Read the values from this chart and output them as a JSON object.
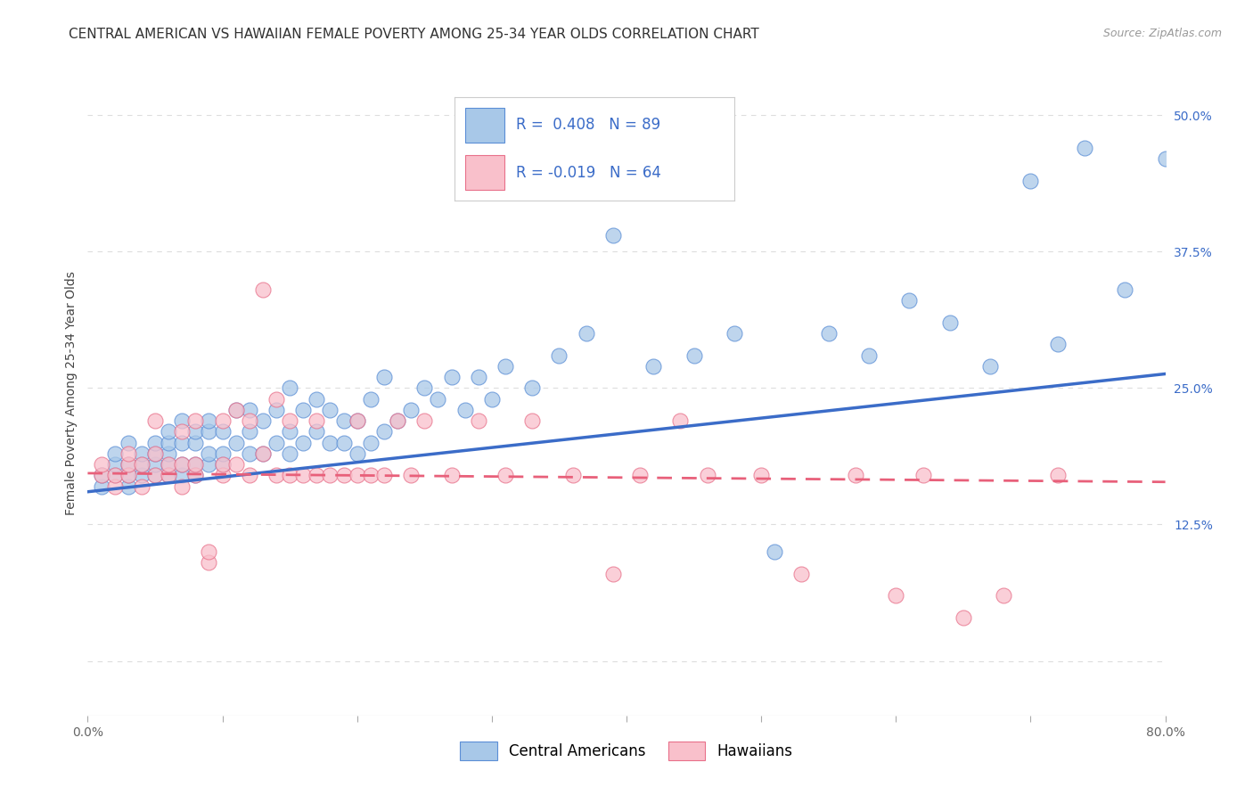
{
  "title": "CENTRAL AMERICAN VS HAWAIIAN FEMALE POVERTY AMONG 25-34 YEAR OLDS CORRELATION CHART",
  "source": "Source: ZipAtlas.com",
  "ylabel": "Female Poverty Among 25-34 Year Olds",
  "xlim": [
    0.0,
    0.8
  ],
  "ylim": [
    -0.05,
    0.54
  ],
  "xticks": [
    0.0,
    0.1,
    0.2,
    0.3,
    0.4,
    0.5,
    0.6,
    0.7,
    0.8
  ],
  "yticks_right": [
    0.0,
    0.125,
    0.25,
    0.375,
    0.5
  ],
  "yticklabels_right": [
    "",
    "12.5%",
    "25.0%",
    "37.5%",
    "50.0%"
  ],
  "blue_color": "#A8C8E8",
  "pink_color": "#F9C0CB",
  "blue_edge_color": "#5B8ED6",
  "pink_edge_color": "#E8708A",
  "blue_line_color": "#3B6CC8",
  "pink_line_color": "#E8607A",
  "r_blue": 0.408,
  "n_blue": 89,
  "r_pink": -0.019,
  "n_pink": 64,
  "blue_intercept": 0.155,
  "blue_slope": 0.135,
  "pink_intercept": 0.172,
  "pink_slope": -0.01,
  "blue_scatter_x": [
    0.01,
    0.01,
    0.02,
    0.02,
    0.02,
    0.03,
    0.03,
    0.03,
    0.03,
    0.04,
    0.04,
    0.04,
    0.05,
    0.05,
    0.05,
    0.05,
    0.06,
    0.06,
    0.06,
    0.06,
    0.06,
    0.07,
    0.07,
    0.07,
    0.07,
    0.08,
    0.08,
    0.08,
    0.08,
    0.09,
    0.09,
    0.09,
    0.09,
    0.1,
    0.1,
    0.1,
    0.11,
    0.11,
    0.12,
    0.12,
    0.12,
    0.13,
    0.13,
    0.14,
    0.14,
    0.15,
    0.15,
    0.15,
    0.16,
    0.16,
    0.17,
    0.17,
    0.18,
    0.18,
    0.19,
    0.19,
    0.2,
    0.2,
    0.21,
    0.21,
    0.22,
    0.22,
    0.23,
    0.24,
    0.25,
    0.26,
    0.27,
    0.28,
    0.29,
    0.3,
    0.31,
    0.33,
    0.35,
    0.37,
    0.39,
    0.42,
    0.45,
    0.48,
    0.51,
    0.55,
    0.58,
    0.61,
    0.64,
    0.67,
    0.7,
    0.72,
    0.74,
    0.77,
    0.8
  ],
  "blue_scatter_y": [
    0.16,
    0.17,
    0.17,
    0.18,
    0.19,
    0.16,
    0.17,
    0.18,
    0.2,
    0.17,
    0.18,
    0.19,
    0.17,
    0.18,
    0.19,
    0.2,
    0.17,
    0.18,
    0.19,
    0.2,
    0.21,
    0.17,
    0.18,
    0.2,
    0.22,
    0.17,
    0.18,
    0.2,
    0.21,
    0.18,
    0.19,
    0.21,
    0.22,
    0.18,
    0.19,
    0.21,
    0.2,
    0.23,
    0.19,
    0.21,
    0.23,
    0.19,
    0.22,
    0.2,
    0.23,
    0.19,
    0.21,
    0.25,
    0.2,
    0.23,
    0.21,
    0.24,
    0.2,
    0.23,
    0.2,
    0.22,
    0.19,
    0.22,
    0.2,
    0.24,
    0.21,
    0.26,
    0.22,
    0.23,
    0.25,
    0.24,
    0.26,
    0.23,
    0.26,
    0.24,
    0.27,
    0.25,
    0.28,
    0.3,
    0.39,
    0.27,
    0.28,
    0.3,
    0.1,
    0.3,
    0.28,
    0.33,
    0.31,
    0.27,
    0.44,
    0.29,
    0.47,
    0.34,
    0.46
  ],
  "pink_scatter_x": [
    0.01,
    0.01,
    0.02,
    0.02,
    0.03,
    0.03,
    0.03,
    0.04,
    0.04,
    0.05,
    0.05,
    0.05,
    0.06,
    0.06,
    0.07,
    0.07,
    0.07,
    0.08,
    0.08,
    0.08,
    0.09,
    0.09,
    0.1,
    0.1,
    0.1,
    0.11,
    0.11,
    0.12,
    0.12,
    0.13,
    0.13,
    0.14,
    0.14,
    0.15,
    0.15,
    0.16,
    0.17,
    0.17,
    0.18,
    0.19,
    0.2,
    0.2,
    0.21,
    0.22,
    0.23,
    0.24,
    0.25,
    0.27,
    0.29,
    0.31,
    0.33,
    0.36,
    0.39,
    0.41,
    0.44,
    0.46,
    0.5,
    0.53,
    0.57,
    0.6,
    0.62,
    0.65,
    0.68,
    0.72
  ],
  "pink_scatter_y": [
    0.17,
    0.18,
    0.16,
    0.17,
    0.17,
    0.18,
    0.19,
    0.16,
    0.18,
    0.17,
    0.19,
    0.22,
    0.17,
    0.18,
    0.16,
    0.18,
    0.21,
    0.17,
    0.18,
    0.22,
    0.09,
    0.1,
    0.17,
    0.18,
    0.22,
    0.18,
    0.23,
    0.17,
    0.22,
    0.19,
    0.34,
    0.17,
    0.24,
    0.17,
    0.22,
    0.17,
    0.17,
    0.22,
    0.17,
    0.17,
    0.17,
    0.22,
    0.17,
    0.17,
    0.22,
    0.17,
    0.22,
    0.17,
    0.22,
    0.17,
    0.22,
    0.17,
    0.08,
    0.17,
    0.22,
    0.17,
    0.17,
    0.08,
    0.17,
    0.06,
    0.17,
    0.04,
    0.06,
    0.17
  ],
  "background_color": "#FFFFFF",
  "grid_color": "#DDDDDD",
  "title_fontsize": 11,
  "axis_label_fontsize": 10,
  "tick_fontsize": 10,
  "legend_fontsize": 12
}
